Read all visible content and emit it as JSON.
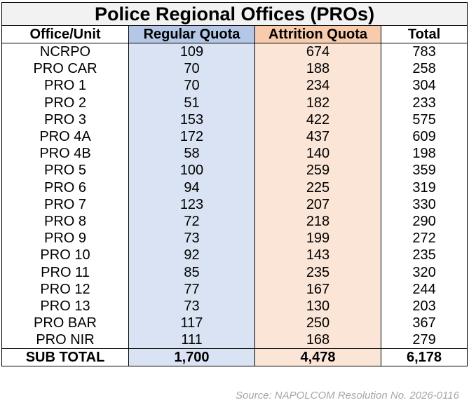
{
  "title": "Police Regional Offices (PROs)",
  "columns": [
    "Office/Unit",
    "Regular Quota",
    "Attrition Quota",
    "Total"
  ],
  "rows": [
    [
      "NCRPO",
      "109",
      "674",
      "783"
    ],
    [
      "PRO CAR",
      "70",
      "188",
      "258"
    ],
    [
      "PRO 1",
      "70",
      "234",
      "304"
    ],
    [
      "PRO 2",
      "51",
      "182",
      "233"
    ],
    [
      "PRO 3",
      "153",
      "422",
      "575"
    ],
    [
      "PRO 4A",
      "172",
      "437",
      "609"
    ],
    [
      "PRO 4B",
      "58",
      "140",
      "198"
    ],
    [
      "PRO 5",
      "100",
      "259",
      "359"
    ],
    [
      "PRO 6",
      "94",
      "225",
      "319"
    ],
    [
      "PRO 7",
      "123",
      "207",
      "330"
    ],
    [
      "PRO 8",
      "72",
      "218",
      "290"
    ],
    [
      "PRO 9",
      "73",
      "199",
      "272"
    ],
    [
      "PRO 10",
      "92",
      "143",
      "235"
    ],
    [
      "PRO 11",
      "85",
      "235",
      "320"
    ],
    [
      "PRO 12",
      "77",
      "167",
      "244"
    ],
    [
      "PRO 13",
      "73",
      "130",
      "203"
    ],
    [
      "PRO BAR",
      "117",
      "250",
      "367"
    ],
    [
      "PRO NIR",
      "111",
      "168",
      "279"
    ]
  ],
  "subtotal": [
    "SUB TOTAL",
    "1,700",
    "4,478",
    "6,178"
  ],
  "source": "Source: NAPOLCOM Resolution No. 2026-0116",
  "colors": {
    "regular_header": "#b4c7e7",
    "regular_cells": "#dae3f3",
    "attrition_header": "#f8cbad",
    "attrition_cells": "#fbe5d6",
    "title_bg": "#f2f2f2"
  }
}
